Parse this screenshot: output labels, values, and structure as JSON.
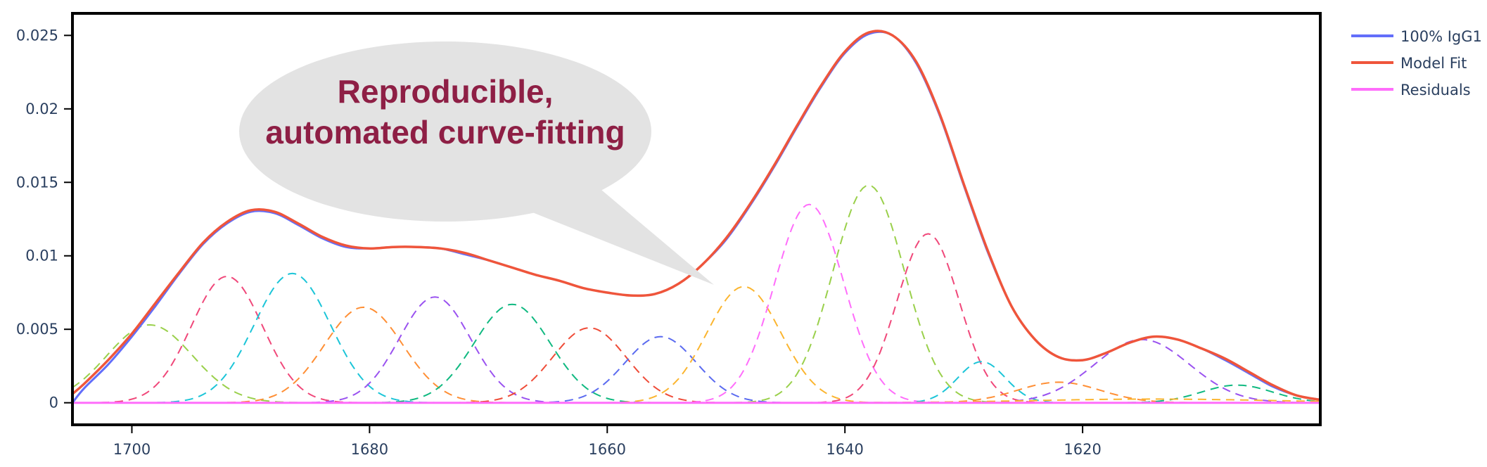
{
  "chart_data": {
    "type": "line",
    "title": "",
    "xlabel": "",
    "ylabel": "",
    "x_reversed": true,
    "xlim": [
      1705,
      1600
    ],
    "ylim": [
      -0.0015,
      0.0265
    ],
    "x_ticks": [
      1700,
      1680,
      1660,
      1640,
      1620
    ],
    "y_ticks": [
      0,
      0.005,
      0.01,
      0.015,
      0.02,
      0.025
    ],
    "y_tick_labels": [
      "0",
      "0.005",
      "0.01",
      "0.015",
      "0.02",
      "0.025"
    ],
    "grid": false,
    "legend_position": "right",
    "series": [
      {
        "name": "100% IgG1",
        "color": "#636efa",
        "style": "solid",
        "x": [
          1705,
          1704,
          1702,
          1700,
          1698,
          1696,
          1694,
          1692,
          1690,
          1688,
          1686,
          1684,
          1682,
          1680,
          1678,
          1676,
          1674,
          1672,
          1670,
          1668,
          1666,
          1664,
          1662,
          1660,
          1658,
          1656,
          1654,
          1652,
          1650,
          1648,
          1646,
          1644,
          1642,
          1640,
          1638,
          1636,
          1634,
          1632,
          1630,
          1628,
          1626,
          1624,
          1622,
          1620,
          1618,
          1616,
          1614,
          1612,
          1610,
          1608,
          1606,
          1604,
          1602,
          1600
        ],
        "y": [
          0.0,
          0.001,
          0.0026,
          0.0045,
          0.0066,
          0.0088,
          0.0108,
          0.0122,
          0.013,
          0.0129,
          0.0121,
          0.0112,
          0.0106,
          0.0105,
          0.0106,
          0.0106,
          0.0105,
          0.0101,
          0.0097,
          0.0092,
          0.0087,
          0.0083,
          0.0078,
          0.0075,
          0.0073,
          0.0074,
          0.0081,
          0.0094,
          0.0111,
          0.0134,
          0.016,
          0.0188,
          0.0215,
          0.0238,
          0.0251,
          0.025,
          0.0231,
          0.0195,
          0.0148,
          0.0103,
          0.0066,
          0.0043,
          0.0031,
          0.0029,
          0.0034,
          0.0041,
          0.0045,
          0.0043,
          0.0037,
          0.0029,
          0.002,
          0.0011,
          0.0005,
          0.0002
        ]
      },
      {
        "name": "Model Fit",
        "color": "#ef553b",
        "style": "solid",
        "x": [
          1705,
          1704,
          1702,
          1700,
          1698,
          1696,
          1694,
          1692,
          1690,
          1688,
          1686,
          1684,
          1682,
          1680,
          1678,
          1676,
          1674,
          1672,
          1670,
          1668,
          1666,
          1664,
          1662,
          1660,
          1658,
          1656,
          1654,
          1652,
          1650,
          1648,
          1646,
          1644,
          1642,
          1640,
          1638,
          1636,
          1634,
          1632,
          1630,
          1628,
          1626,
          1624,
          1622,
          1620,
          1618,
          1616,
          1614,
          1612,
          1610,
          1608,
          1606,
          1604,
          1602,
          1600
        ],
        "y": [
          0.0006,
          0.0013,
          0.0029,
          0.0047,
          0.0068,
          0.0089,
          0.0109,
          0.0123,
          0.0131,
          0.013,
          0.0122,
          0.0113,
          0.0107,
          0.0105,
          0.0106,
          0.0106,
          0.0105,
          0.0102,
          0.0097,
          0.0092,
          0.0087,
          0.0083,
          0.0078,
          0.0075,
          0.0073,
          0.0074,
          0.0081,
          0.0094,
          0.0112,
          0.0135,
          0.0161,
          0.0189,
          0.0216,
          0.0239,
          0.0252,
          0.025,
          0.0232,
          0.0196,
          0.0149,
          0.0104,
          0.0066,
          0.0043,
          0.0031,
          0.0029,
          0.0034,
          0.0041,
          0.0045,
          0.0043,
          0.0037,
          0.003,
          0.0021,
          0.0012,
          0.0005,
          0.0002
        ]
      },
      {
        "name": "Residuals",
        "color": "#ff6dfb",
        "style": "solid",
        "x": [
          1705,
          1680,
          1660,
          1640,
          1620,
          1600
        ],
        "y": [
          0.0,
          0.0,
          0.0,
          0.0,
          0.0,
          0.0
        ]
      }
    ],
    "components": [
      {
        "center": 1698.5,
        "amplitude": 0.0053,
        "width": 3.6,
        "color": "#9ad04b"
      },
      {
        "center": 1692.0,
        "amplitude": 0.0086,
        "width": 3.0,
        "color": "#f0487a"
      },
      {
        "center": 1686.5,
        "amplitude": 0.0088,
        "width": 3.2,
        "color": "#1cc5d8"
      },
      {
        "center": 1680.5,
        "amplitude": 0.0065,
        "width": 3.3,
        "color": "#ff8f35"
      },
      {
        "center": 1674.5,
        "amplitude": 0.0072,
        "width": 3.0,
        "color": "#9a52f0"
      },
      {
        "center": 1668.0,
        "amplitude": 0.0067,
        "width": 3.2,
        "color": "#10b981"
      },
      {
        "center": 1661.5,
        "amplitude": 0.0051,
        "width": 3.1,
        "color": "#ef4c38"
      },
      {
        "center": 1655.5,
        "amplitude": 0.0045,
        "width": 3.0,
        "color": "#5b6bf0"
      },
      {
        "center": 1648.5,
        "amplitude": 0.0079,
        "width": 3.1,
        "color": "#fbb52f"
      },
      {
        "center": 1643.0,
        "amplitude": 0.0135,
        "width": 2.9,
        "color": "#ff6dfb"
      },
      {
        "center": 1638.0,
        "amplitude": 0.0148,
        "width": 3.0,
        "color": "#9ad04b"
      },
      {
        "center": 1633.0,
        "amplitude": 0.0115,
        "width": 2.6,
        "color": "#f0487a"
      },
      {
        "center": 1628.5,
        "amplitude": 0.0028,
        "width": 2.0,
        "color": "#1cc5d8"
      },
      {
        "center": 1622.0,
        "amplitude": 0.0014,
        "width": 3.5,
        "color": "#ff8f35"
      },
      {
        "center": 1615.0,
        "amplitude": 0.0043,
        "width": 4.0,
        "color": "#9a52f0"
      },
      {
        "center": 1607.0,
        "amplitude": 0.0012,
        "width": 3.0,
        "color": "#10b981"
      },
      {
        "center": 1614.0,
        "amplitude": 0.00025,
        "width": 10.0,
        "color": "#fbb52f"
      }
    ]
  },
  "callout": {
    "line1": "Reproducible,",
    "line2": "automated curve-fitting",
    "fill_color": "#e3e3e3",
    "text_color": "#8e1f45"
  }
}
